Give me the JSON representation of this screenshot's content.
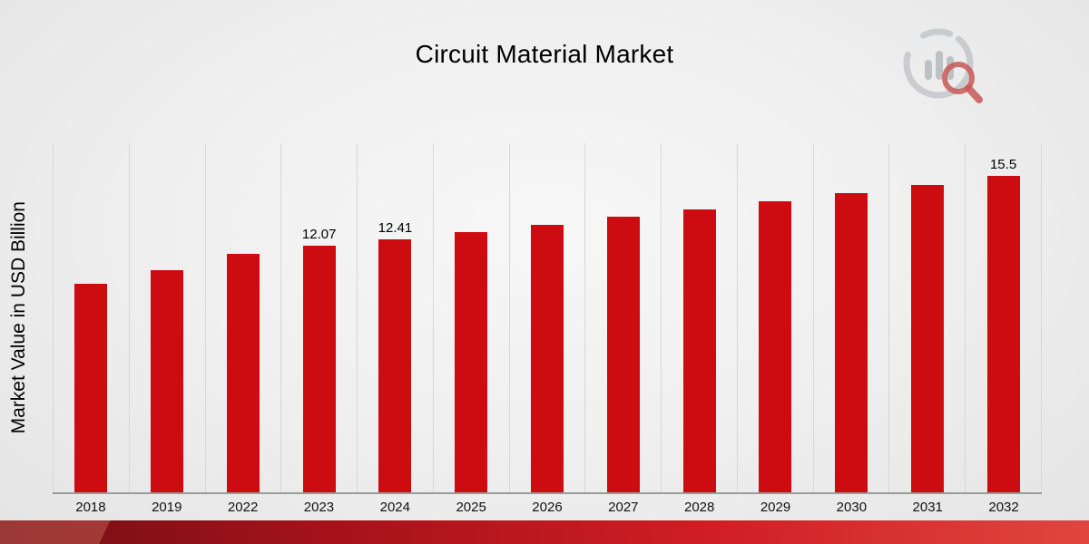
{
  "title": "Circuit Material Market",
  "ylabel": "Market Value in USD Billion",
  "icons": {
    "logo": "bar-chart-magnifier-logo"
  },
  "colors": {
    "bar": "#cc0c11",
    "gridline": "#d7d7d7",
    "baseline": "#9b9b9b",
    "footer_band_dark": "#6f1014",
    "footer_band_bright": "#df463f"
  },
  "chart_data": {
    "type": "bar",
    "title": "Circuit Material Market",
    "xlabel": "",
    "ylabel": "Market Value in USD Billion",
    "categories": [
      "2018",
      "2019",
      "2022",
      "2023",
      "2024",
      "2025",
      "2026",
      "2027",
      "2028",
      "2029",
      "2030",
      "2031",
      "2032"
    ],
    "values": [
      10.2,
      10.9,
      11.7,
      12.07,
      12.41,
      12.76,
      13.12,
      13.49,
      13.87,
      14.26,
      14.66,
      15.07,
      15.5
    ],
    "bar_labels": [
      "",
      "",
      "",
      "12.07",
      "12.41",
      "",
      "",
      "",
      "",
      "",
      "",
      "",
      "15.5"
    ],
    "ylim": [
      0,
      17.1
    ],
    "grid": "vertical",
    "legend": "none",
    "bar_color": "#cc0c11"
  }
}
